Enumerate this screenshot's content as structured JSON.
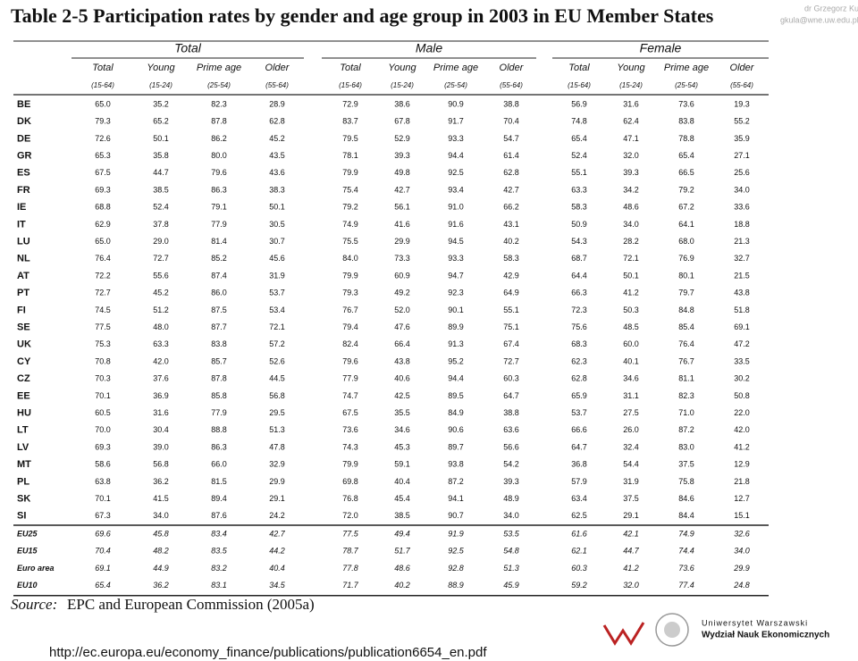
{
  "header": {
    "title": "Table 2-5 Participation rates by gender and age group in 2003 in EU Member States",
    "watermark": [
      "dr Grzegorz Kula,",
      "gkula@wne.uw.edu.pl"
    ]
  },
  "table": {
    "groups": [
      "Total",
      "Male",
      "Female"
    ],
    "columns": [
      {
        "label": "Total",
        "sub": "(15-64)"
      },
      {
        "label": "Young",
        "sub": "(15-24)"
      },
      {
        "label": "Prime age",
        "sub": "(25-54)"
      },
      {
        "label": "Older",
        "sub": "(55-64)"
      }
    ],
    "rows": [
      [
        "BE",
        "65.0",
        "35.2",
        "82.3",
        "28.9",
        "72.9",
        "38.6",
        "90.9",
        "38.8",
        "56.9",
        "31.6",
        "73.6",
        "19.3"
      ],
      [
        "DK",
        "79.3",
        "65.2",
        "87.8",
        "62.8",
        "83.7",
        "67.8",
        "91.7",
        "70.4",
        "74.8",
        "62.4",
        "83.8",
        "55.2"
      ],
      [
        "DE",
        "72.6",
        "50.1",
        "86.2",
        "45.2",
        "79.5",
        "52.9",
        "93.3",
        "54.7",
        "65.4",
        "47.1",
        "78.8",
        "35.9"
      ],
      [
        "GR",
        "65.3",
        "35.8",
        "80.0",
        "43.5",
        "78.1",
        "39.3",
        "94.4",
        "61.4",
        "52.4",
        "32.0",
        "65.4",
        "27.1"
      ],
      [
        "ES",
        "67.5",
        "44.7",
        "79.6",
        "43.6",
        "79.9",
        "49.8",
        "92.5",
        "62.8",
        "55.1",
        "39.3",
        "66.5",
        "25.6"
      ],
      [
        "FR",
        "69.3",
        "38.5",
        "86.3",
        "38.3",
        "75.4",
        "42.7",
        "93.4",
        "42.7",
        "63.3",
        "34.2",
        "79.2",
        "34.0"
      ],
      [
        "IE",
        "68.8",
        "52.4",
        "79.1",
        "50.1",
        "79.2",
        "56.1",
        "91.0",
        "66.2",
        "58.3",
        "48.6",
        "67.2",
        "33.6"
      ],
      [
        "IT",
        "62.9",
        "37.8",
        "77.9",
        "30.5",
        "74.9",
        "41.6",
        "91.6",
        "43.1",
        "50.9",
        "34.0",
        "64.1",
        "18.8"
      ],
      [
        "LU",
        "65.0",
        "29.0",
        "81.4",
        "30.7",
        "75.5",
        "29.9",
        "94.5",
        "40.2",
        "54.3",
        "28.2",
        "68.0",
        "21.3"
      ],
      [
        "NL",
        "76.4",
        "72.7",
        "85.2",
        "45.6",
        "84.0",
        "73.3",
        "93.3",
        "58.3",
        "68.7",
        "72.1",
        "76.9",
        "32.7"
      ],
      [
        "AT",
        "72.2",
        "55.6",
        "87.4",
        "31.9",
        "79.9",
        "60.9",
        "94.7",
        "42.9",
        "64.4",
        "50.1",
        "80.1",
        "21.5"
      ],
      [
        "PT",
        "72.7",
        "45.2",
        "86.0",
        "53.7",
        "79.3",
        "49.2",
        "92.3",
        "64.9",
        "66.3",
        "41.2",
        "79.7",
        "43.8"
      ],
      [
        "FI",
        "74.5",
        "51.2",
        "87.5",
        "53.4",
        "76.7",
        "52.0",
        "90.1",
        "55.1",
        "72.3",
        "50.3",
        "84.8",
        "51.8"
      ],
      [
        "SE",
        "77.5",
        "48.0",
        "87.7",
        "72.1",
        "79.4",
        "47.6",
        "89.9",
        "75.1",
        "75.6",
        "48.5",
        "85.4",
        "69.1"
      ],
      [
        "UK",
        "75.3",
        "63.3",
        "83.8",
        "57.2",
        "82.4",
        "66.4",
        "91.3",
        "67.4",
        "68.3",
        "60.0",
        "76.4",
        "47.2"
      ],
      [
        "CY",
        "70.8",
        "42.0",
        "85.7",
        "52.6",
        "79.6",
        "43.8",
        "95.2",
        "72.7",
        "62.3",
        "40.1",
        "76.7",
        "33.5"
      ],
      [
        "CZ",
        "70.3",
        "37.6",
        "87.8",
        "44.5",
        "77.9",
        "40.6",
        "94.4",
        "60.3",
        "62.8",
        "34.6",
        "81.1",
        "30.2"
      ],
      [
        "EE",
        "70.1",
        "36.9",
        "85.8",
        "56.8",
        "74.7",
        "42.5",
        "89.5",
        "64.7",
        "65.9",
        "31.1",
        "82.3",
        "50.8"
      ],
      [
        "HU",
        "60.5",
        "31.6",
        "77.9",
        "29.5",
        "67.5",
        "35.5",
        "84.9",
        "38.8",
        "53.7",
        "27.5",
        "71.0",
        "22.0"
      ],
      [
        "LT",
        "70.0",
        "30.4",
        "88.8",
        "51.3",
        "73.6",
        "34.6",
        "90.6",
        "63.6",
        "66.6",
        "26.0",
        "87.2",
        "42.0"
      ],
      [
        "LV",
        "69.3",
        "39.0",
        "86.3",
        "47.8",
        "74.3",
        "45.3",
        "89.7",
        "56.6",
        "64.7",
        "32.4",
        "83.0",
        "41.2"
      ],
      [
        "MT",
        "58.6",
        "56.8",
        "66.0",
        "32.9",
        "79.9",
        "59.1",
        "93.8",
        "54.2",
        "36.8",
        "54.4",
        "37.5",
        "12.9"
      ],
      [
        "PL",
        "63.8",
        "36.2",
        "81.5",
        "29.9",
        "69.8",
        "40.4",
        "87.2",
        "39.3",
        "57.9",
        "31.9",
        "75.8",
        "21.8"
      ],
      [
        "SK",
        "70.1",
        "41.5",
        "89.4",
        "29.1",
        "76.8",
        "45.4",
        "94.1",
        "48.9",
        "63.4",
        "37.5",
        "84.6",
        "12.7"
      ],
      [
        "SI",
        "67.3",
        "34.0",
        "87.6",
        "24.2",
        "72.0",
        "38.5",
        "90.7",
        "34.0",
        "62.5",
        "29.1",
        "84.4",
        "15.1"
      ]
    ],
    "aggregates": [
      [
        "EU25",
        "69.6",
        "45.8",
        "83.4",
        "42.7",
        "77.5",
        "49.4",
        "91.9",
        "53.5",
        "61.6",
        "42.1",
        "74.9",
        "32.6"
      ],
      [
        "EU15",
        "70.4",
        "48.2",
        "83.5",
        "44.2",
        "78.7",
        "51.7",
        "92.5",
        "54.8",
        "62.1",
        "44.7",
        "74.4",
        "34.0"
      ],
      [
        "Euro area",
        "69.1",
        "44.9",
        "83.2",
        "40.4",
        "77.8",
        "48.6",
        "92.8",
        "51.3",
        "60.3",
        "41.2",
        "73.6",
        "29.9"
      ],
      [
        "EU10",
        "65.4",
        "36.2",
        "83.1",
        "34.5",
        "71.7",
        "40.2",
        "88.9",
        "45.9",
        "59.2",
        "32.0",
        "77.4",
        "24.8"
      ]
    ]
  },
  "source": {
    "label": "Source:",
    "text": "EPC and European Commission (2005a)"
  },
  "url": "http://ec.europa.eu/economy_finance/publications/publication6654_en.pdf",
  "logo": {
    "line1": "Uniwersytet Warszawski",
    "line2": "Wydział Nauk Ekonomicznych"
  }
}
